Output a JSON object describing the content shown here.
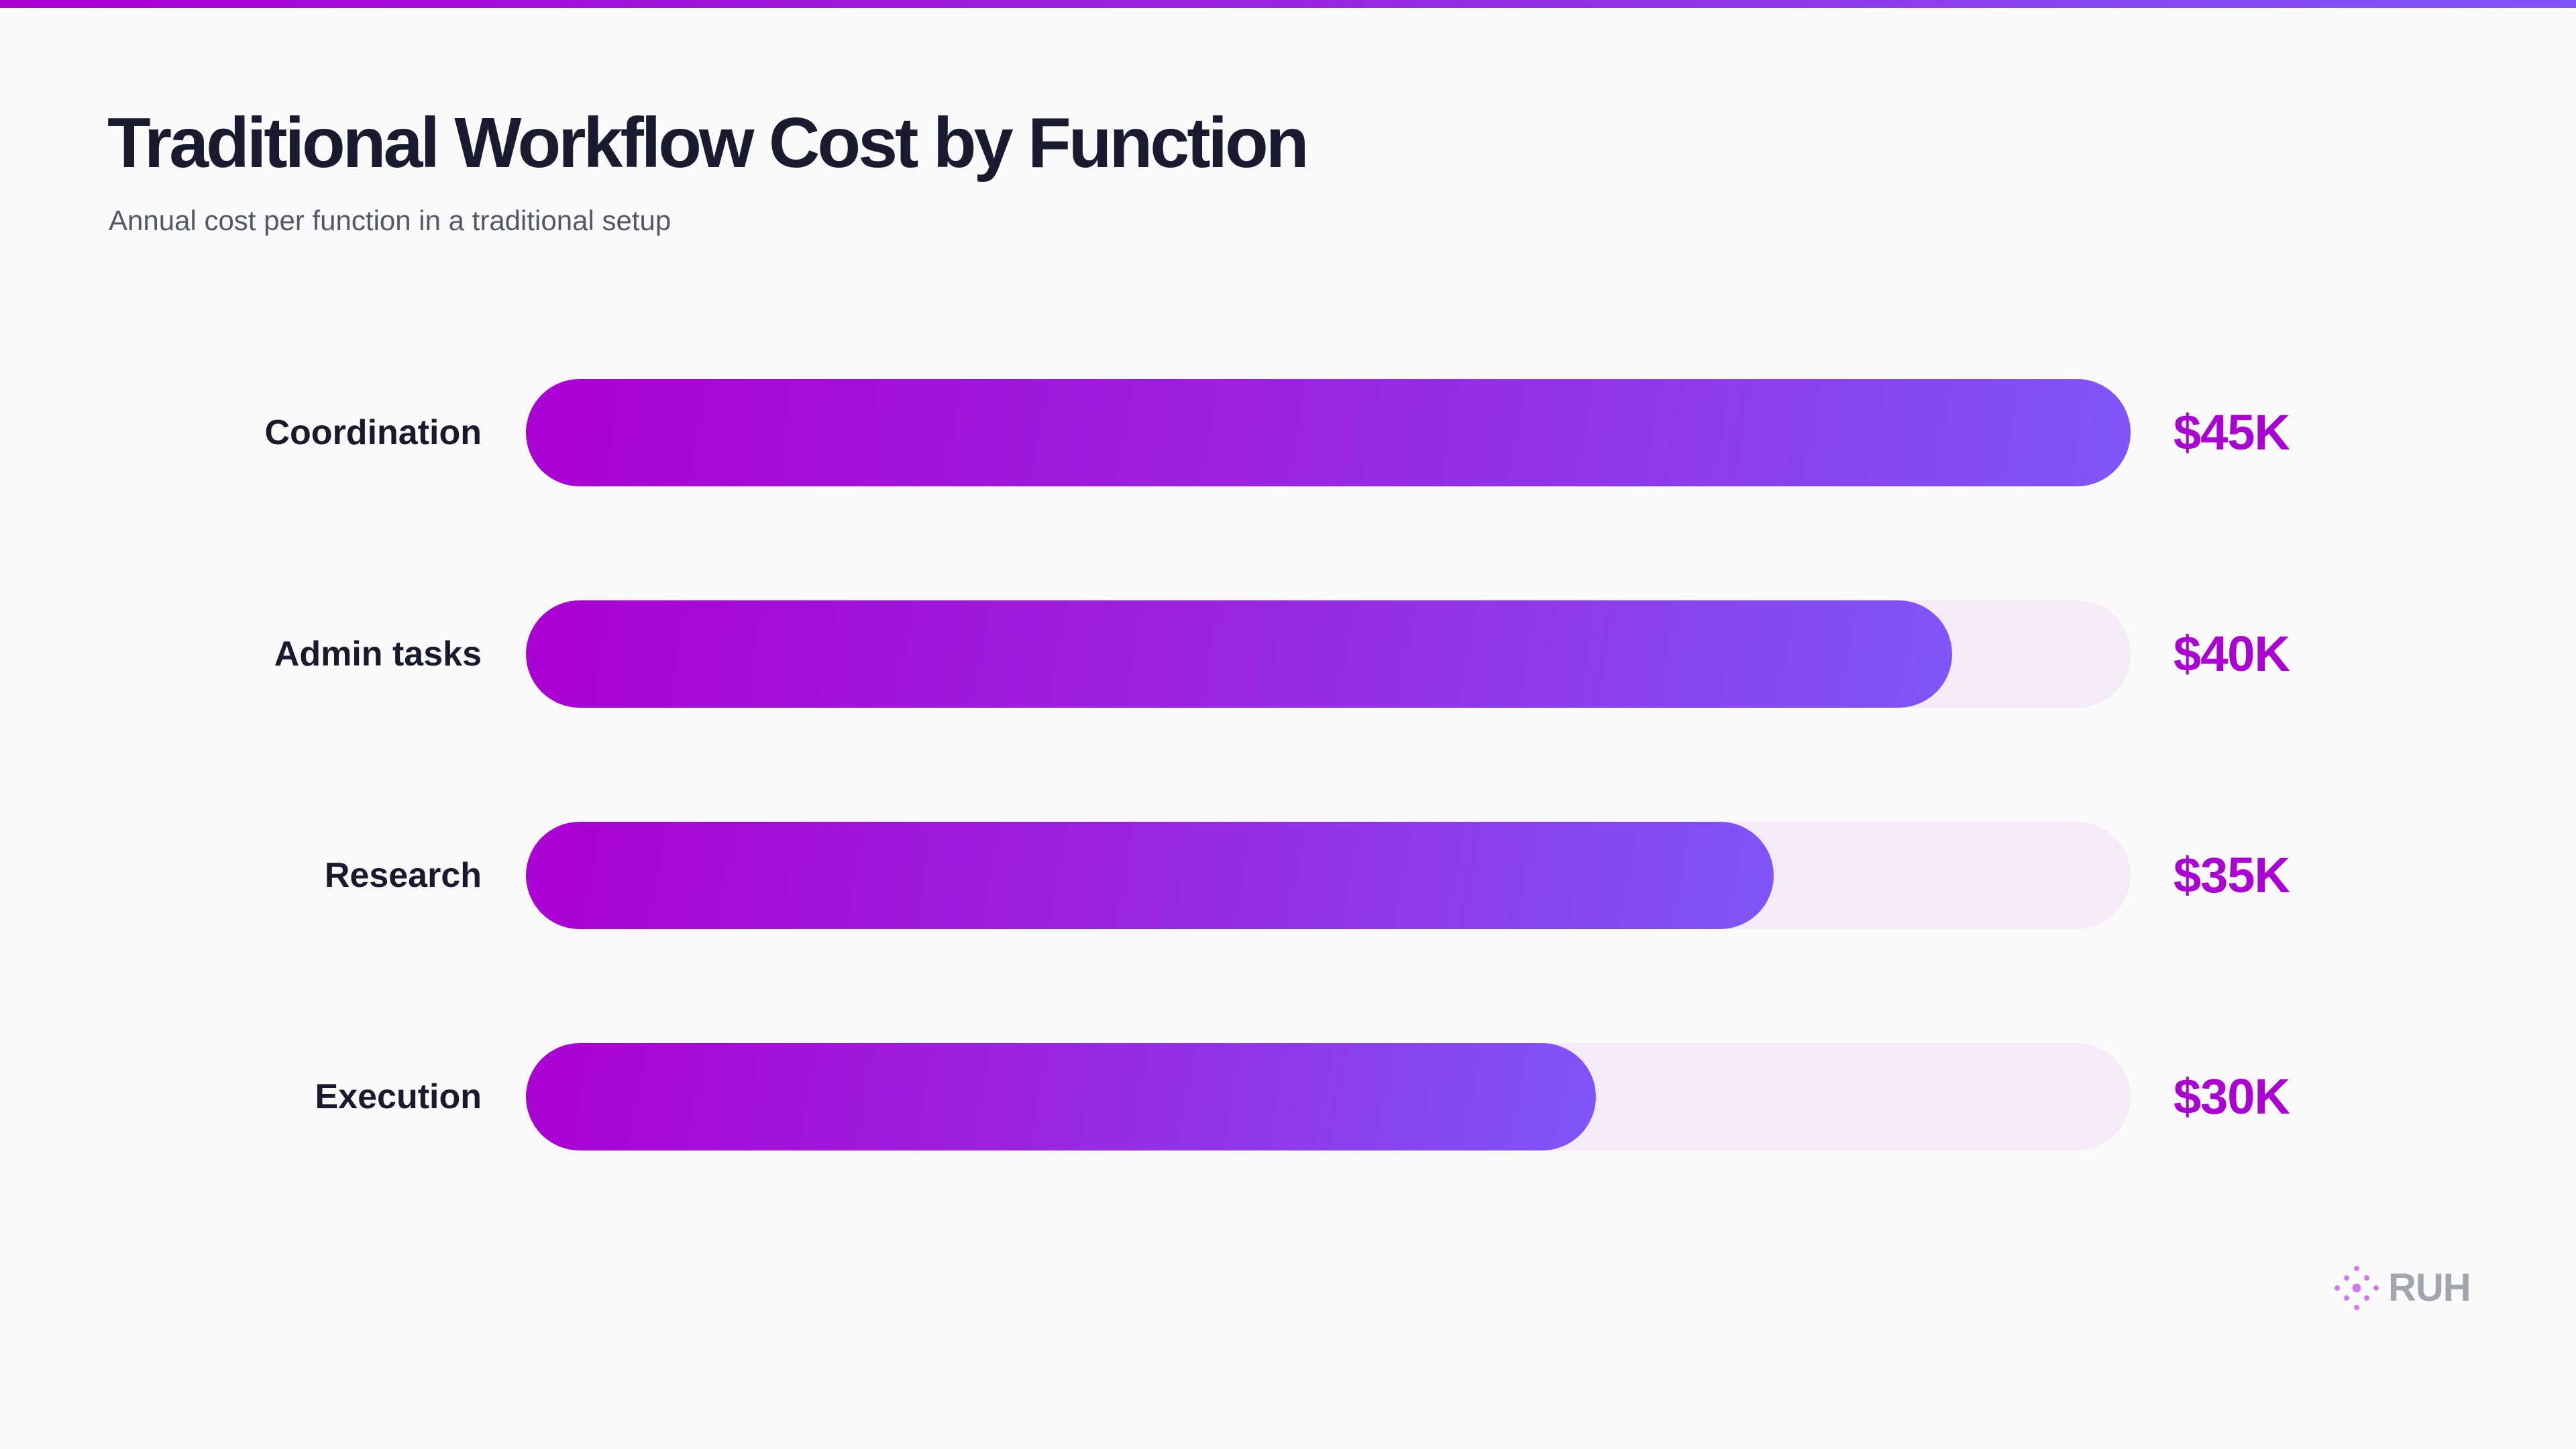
{
  "header": {
    "title": "Traditional Workflow Cost by Function",
    "subtitle": "Annual cost per function in a traditional setup"
  },
  "colors": {
    "gradient_start": "#AB00D3",
    "gradient_end": "#7F56FA",
    "track": "#F5EAF7",
    "value_text": "#AA00D4",
    "label_text": "#1A1A2E",
    "background": "#FAFAFA"
  },
  "rows": [
    {
      "label": "Coordination",
      "value": 45,
      "display": "$45K"
    },
    {
      "label": "Admin tasks",
      "value": 40,
      "display": "$40K"
    },
    {
      "label": "Research",
      "value": 35,
      "display": "$35K"
    },
    {
      "label": "Execution",
      "value": 30,
      "display": "$30K"
    }
  ],
  "brand": {
    "logo_text": "RUH",
    "logo_icon": "dot-diamond-icon"
  },
  "chart_data": {
    "type": "bar",
    "orientation": "horizontal",
    "title": "Traditional Workflow Cost by Function",
    "subtitle": "Annual cost per function in a traditional setup",
    "categories": [
      "Coordination",
      "Admin tasks",
      "Research",
      "Execution"
    ],
    "values": [
      45,
      40,
      35,
      30
    ],
    "value_labels": [
      "$45K",
      "$40K",
      "$35K",
      "$30K"
    ],
    "unit": "USD thousands",
    "xlabel": "",
    "ylabel": "",
    "xlim": [
      0,
      45
    ],
    "grid": false,
    "legend": null
  }
}
